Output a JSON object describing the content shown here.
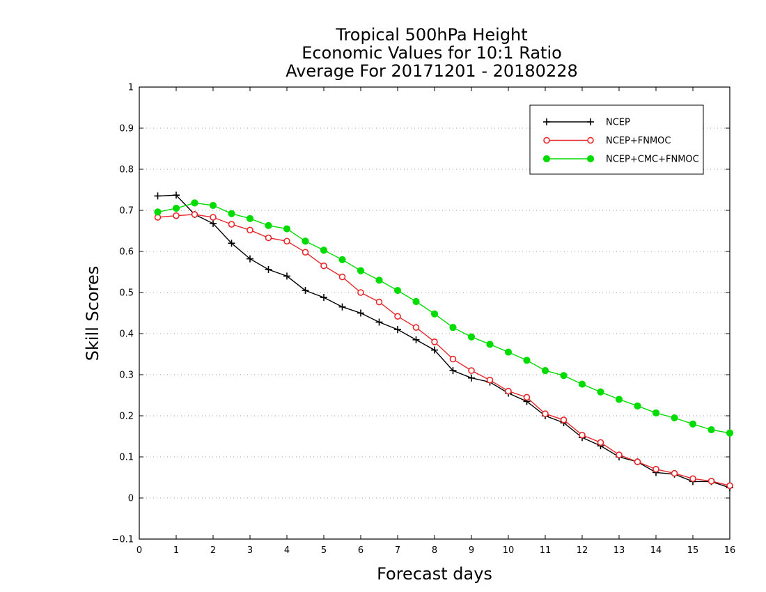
{
  "chart_data": {
    "type": "line",
    "title_lines": [
      "Tropical 500hPa Height",
      "Economic Values for 10:1 Ratio",
      "Average For 20171201 - 20180228"
    ],
    "xlabel": "Forecast days",
    "ylabel": "Skill Scores",
    "xlim": [
      0,
      16
    ],
    "ylim": [
      -0.1,
      1
    ],
    "x_ticks": [
      0,
      1,
      2,
      3,
      4,
      5,
      6,
      7,
      8,
      9,
      10,
      11,
      12,
      13,
      14,
      15,
      16
    ],
    "y_ticks": [
      -0.1,
      0,
      0.1,
      0.2,
      0.3,
      0.4,
      0.5,
      0.6,
      0.7,
      0.8,
      0.9,
      1
    ],
    "y_tick_labels": [
      "−0.1",
      "0",
      "0.1",
      "0.2",
      "0.3",
      "0.4",
      "0.5",
      "0.6",
      "0.7",
      "0.8",
      "0.9",
      "1"
    ],
    "grid": "horizontal dotted",
    "legend_position": "top-right",
    "x": [
      0.5,
      1,
      1.5,
      2,
      2.5,
      3,
      3.5,
      4,
      4.5,
      5,
      5.5,
      6,
      6.5,
      7,
      7.5,
      8,
      8.5,
      9,
      9.5,
      10,
      10.5,
      11,
      11.5,
      12,
      12.5,
      13,
      13.5,
      14,
      14.5,
      15,
      15.5,
      16
    ],
    "series": [
      {
        "name": "NCEP",
        "color": "#000000",
        "marker": "plus",
        "values": [
          0.735,
          0.737,
          0.69,
          0.668,
          0.62,
          0.582,
          0.556,
          0.54,
          0.505,
          0.488,
          0.465,
          0.45,
          0.428,
          0.41,
          0.385,
          0.36,
          0.31,
          0.292,
          0.282,
          0.255,
          0.235,
          0.2,
          0.183,
          0.147,
          0.127,
          0.1,
          0.088,
          0.062,
          0.058,
          0.04,
          0.04,
          0.025
        ]
      },
      {
        "name": "NCEP+FNMOC",
        "color": "#e8272a",
        "marker": "open-circle",
        "values": [
          0.683,
          0.687,
          0.69,
          0.683,
          0.666,
          0.652,
          0.633,
          0.625,
          0.598,
          0.565,
          0.538,
          0.5,
          0.477,
          0.442,
          0.415,
          0.38,
          0.338,
          0.31,
          0.287,
          0.26,
          0.245,
          0.205,
          0.19,
          0.153,
          0.135,
          0.105,
          0.088,
          0.07,
          0.06,
          0.047,
          0.041,
          0.03
        ]
      },
      {
        "name": "NCEP+CMC+FNMOC",
        "color": "#00dc00",
        "marker": "filled-circle",
        "values": [
          0.696,
          0.705,
          0.718,
          0.712,
          0.692,
          0.68,
          0.663,
          0.655,
          0.625,
          0.603,
          0.58,
          0.553,
          0.53,
          0.505,
          0.478,
          0.448,
          0.415,
          0.392,
          0.374,
          0.355,
          0.335,
          0.31,
          0.298,
          0.277,
          0.258,
          0.24,
          0.224,
          0.207,
          0.195,
          0.18,
          0.166,
          0.158
        ]
      }
    ]
  }
}
